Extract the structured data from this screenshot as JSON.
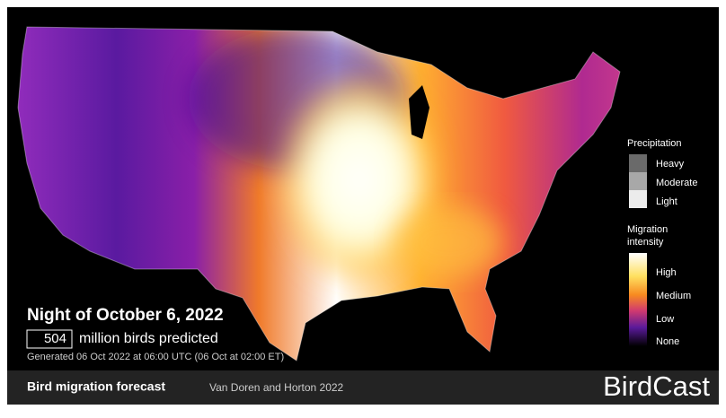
{
  "title": "Night of October 6, 2022",
  "birds": {
    "count": 504,
    "label": "million birds predicted"
  },
  "generated": "Generated 06 Oct 2022 at 06:00 UTC (06 Oct at 02:00 ET)",
  "legend": {
    "precipitation": {
      "title": "Precipitation",
      "levels": [
        "Heavy",
        "Moderate",
        "Light"
      ]
    },
    "migration": {
      "title": [
        "Migration",
        "intensity"
      ],
      "levels": [
        "High",
        "Medium",
        "Low",
        "None"
      ]
    }
  },
  "footer": {
    "title": "Bird migration forecast",
    "credit": "Van Doren and Horton 2022",
    "brand": "BirdCast"
  }
}
